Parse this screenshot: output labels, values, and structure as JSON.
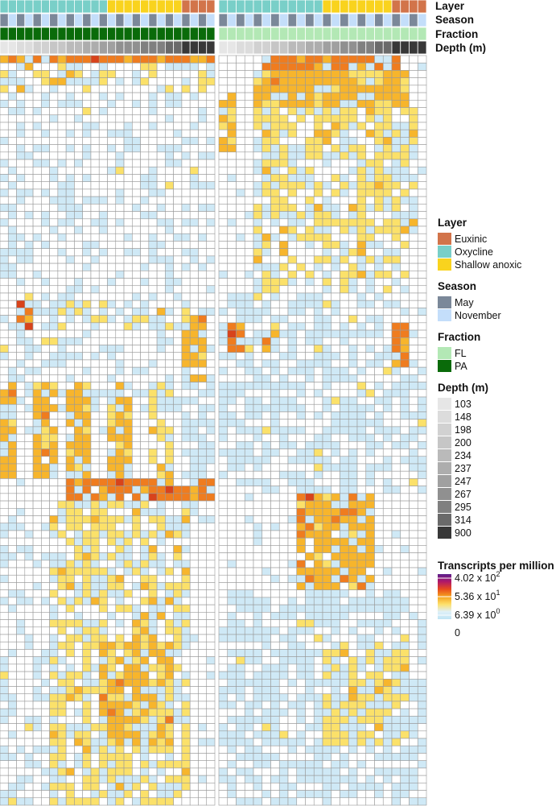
{
  "chart_data": {
    "type": "heatmap",
    "n_rows": 101,
    "panels": [
      {
        "name": "PA",
        "n_cols": 26
      },
      {
        "name": "FL",
        "n_cols": 24
      }
    ],
    "annotation_tracks": [
      "Layer",
      "Season",
      "Fraction",
      "Depth (m)"
    ],
    "legend": {
      "layer": {
        "title": "Layer",
        "items": [
          {
            "label": "Euxinic",
            "color": "#d2744a"
          },
          {
            "label": "Oxycline",
            "color": "#79cfc8"
          },
          {
            "label": "Shallow anoxic",
            "color": "#f9d31e"
          }
        ]
      },
      "season": {
        "title": "Season",
        "items": [
          {
            "label": "May",
            "color": "#7b8899"
          },
          {
            "label": "November",
            "color": "#c4defa"
          }
        ]
      },
      "fraction": {
        "title": "Fraction",
        "items": [
          {
            "label": "FL",
            "color": "#b3e8b5"
          },
          {
            "label": "PA",
            "color": "#0a6b0a"
          }
        ]
      },
      "depth": {
        "title": "Depth (m)",
        "items": [
          {
            "label": "103",
            "color": "#e6e6e6"
          },
          {
            "label": "148",
            "color": "#dcdcdc"
          },
          {
            "label": "198",
            "color": "#d1d1d1"
          },
          {
            "label": "200",
            "color": "#c6c6c6"
          },
          {
            "label": "234",
            "color": "#bababa"
          },
          {
            "label": "237",
            "color": "#adadad"
          },
          {
            "label": "247",
            "color": "#a0a0a0"
          },
          {
            "label": "267",
            "color": "#909090"
          },
          {
            "label": "295",
            "color": "#808080"
          },
          {
            "label": "314",
            "color": "#6a6a6a"
          },
          {
            "label": "900",
            "color": "#383838"
          }
        ]
      },
      "tpm": {
        "title": "Transcripts per million",
        "ticks": [
          {
            "mantissa": "4.02 x 10",
            "exp": "2",
            "value": 402
          },
          {
            "mantissa": "5.36 x 10",
            "exp": "1",
            "value": 53.6
          },
          {
            "mantissa": "6.39 x 10",
            "exp": "0",
            "value": 6.39
          },
          {
            "mantissa": "0",
            "exp": "",
            "value": 0
          }
        ],
        "gradient": [
          "#5a1f8c",
          "#b0186a",
          "#e84a1d",
          "#f5a31f",
          "#fde06a",
          "#dff0f8",
          "#bfe4f4"
        ]
      }
    },
    "columns": {
      "PA": {
        "layer": [
          "Oxycline",
          "Oxycline",
          "Oxycline",
          "Oxycline",
          "Oxycline",
          "Oxycline",
          "Oxycline",
          "Oxycline",
          "Oxycline",
          "Oxycline",
          "Oxycline",
          "Oxycline",
          "Oxycline",
          "Shallow anoxic",
          "Shallow anoxic",
          "Shallow anoxic",
          "Shallow anoxic",
          "Shallow anoxic",
          "Shallow anoxic",
          "Shallow anoxic",
          "Shallow anoxic",
          "Shallow anoxic",
          "Euxinic",
          "Euxinic",
          "Euxinic",
          "Euxinic"
        ],
        "season": [
          "May",
          "November",
          "May",
          "November",
          "May",
          "November",
          "May",
          "November",
          "May",
          "November",
          "May",
          "November",
          "May",
          "November",
          "May",
          "November",
          "May",
          "November",
          "May",
          "November",
          "May",
          "November",
          "May",
          "November",
          "May",
          "November"
        ],
        "depth": [
          "103",
          "103",
          "148",
          "148",
          "198",
          "198",
          "200",
          "200",
          "234",
          "234",
          "237",
          "237",
          "247",
          "247",
          "267",
          "267",
          "267",
          "295",
          "295",
          "295",
          "314",
          "314",
          "900",
          "900",
          "900",
          "900"
        ]
      },
      "FL": {
        "layer": [
          "Oxycline",
          "Oxycline",
          "Oxycline",
          "Oxycline",
          "Oxycline",
          "Oxycline",
          "Oxycline",
          "Oxycline",
          "Oxycline",
          "Oxycline",
          "Oxycline",
          "Oxycline",
          "Shallow anoxic",
          "Shallow anoxic",
          "Shallow anoxic",
          "Shallow anoxic",
          "Shallow anoxic",
          "Shallow anoxic",
          "Shallow anoxic",
          "Shallow anoxic",
          "Euxinic",
          "Euxinic",
          "Euxinic",
          "Euxinic"
        ],
        "season": [
          "May",
          "November",
          "May",
          "November",
          "May",
          "November",
          "May",
          "November",
          "May",
          "November",
          "May",
          "November",
          "May",
          "November",
          "May",
          "November",
          "May",
          "November",
          "May",
          "November",
          "May",
          "November",
          "May",
          "November"
        ],
        "depth": [
          "103",
          "103",
          "148",
          "148",
          "198",
          "198",
          "200",
          "200",
          "234",
          "234",
          "237",
          "237",
          "247",
          "247",
          "267",
          "267",
          "295",
          "295",
          "314",
          "314",
          "900",
          "900",
          "900",
          "900"
        ]
      }
    },
    "blocks": [
      {
        "panel": "PA",
        "r0": 0,
        "r1": 0,
        "c0": 0,
        "c1": 25,
        "lvl": 4,
        "dens": 0.9
      },
      {
        "panel": "PA",
        "r0": 1,
        "r1": 4,
        "c0": 0,
        "c1": 25,
        "lvl": 2,
        "dens": 0.3
      },
      {
        "panel": "PA",
        "r0": 5,
        "r1": 31,
        "c0": 0,
        "c1": 25,
        "lvl": 1,
        "dens": 0.12
      },
      {
        "panel": "PA",
        "r0": 32,
        "r1": 47,
        "c0": 0,
        "c1": 25,
        "lvl": 1,
        "dens": 0.18
      },
      {
        "panel": "PA",
        "r0": 33,
        "r1": 36,
        "c0": 2,
        "c1": 3,
        "lvl": 4,
        "dens": 0.9
      },
      {
        "panel": "PA",
        "r0": 33,
        "r1": 36,
        "c0": 6,
        "c1": 19,
        "lvl": 2,
        "dens": 0.35
      },
      {
        "panel": "PA",
        "r0": 35,
        "r1": 43,
        "c0": 22,
        "c1": 24,
        "lvl": 3,
        "dens": 0.55
      },
      {
        "panel": "PA",
        "r0": 44,
        "r1": 56,
        "c0": 0,
        "c1": 1,
        "lvl": 3,
        "dens": 0.7
      },
      {
        "panel": "PA",
        "r0": 44,
        "r1": 56,
        "c0": 4,
        "c1": 6,
        "lvl": 3,
        "dens": 0.8
      },
      {
        "panel": "PA",
        "r0": 44,
        "r1": 56,
        "c0": 8,
        "c1": 10,
        "lvl": 3,
        "dens": 0.75
      },
      {
        "panel": "PA",
        "r0": 44,
        "r1": 56,
        "c0": 13,
        "c1": 15,
        "lvl": 3,
        "dens": 0.75
      },
      {
        "panel": "PA",
        "r0": 44,
        "r1": 56,
        "c0": 18,
        "c1": 20,
        "lvl": 2,
        "dens": 0.5
      },
      {
        "panel": "PA",
        "r0": 44,
        "r1": 60,
        "c0": 22,
        "c1": 25,
        "lvl": 1,
        "dens": 0.3
      },
      {
        "panel": "PA",
        "r0": 57,
        "r1": 59,
        "c0": 8,
        "c1": 25,
        "lvl": 4,
        "dens": 0.8
      },
      {
        "panel": "PA",
        "r0": 60,
        "r1": 100,
        "c0": 6,
        "c1": 22,
        "lvl": 2,
        "dens": 0.55
      },
      {
        "panel": "PA",
        "r0": 60,
        "r1": 100,
        "c0": 0,
        "c1": 5,
        "lvl": 1,
        "dens": 0.12
      },
      {
        "panel": "PA",
        "r0": 79,
        "r1": 92,
        "c0": 12,
        "c1": 20,
        "lvl": 3,
        "dens": 0.6
      },
      {
        "panel": "FL",
        "r0": 0,
        "r1": 1,
        "c0": 5,
        "c1": 20,
        "lvl": 4,
        "dens": 0.8
      },
      {
        "panel": "FL",
        "r0": 2,
        "r1": 6,
        "c0": 4,
        "c1": 21,
        "lvl": 3,
        "dens": 0.85
      },
      {
        "panel": "FL",
        "r0": 7,
        "r1": 23,
        "c0": 4,
        "c1": 22,
        "lvl": 2,
        "dens": 0.6
      },
      {
        "panel": "FL",
        "r0": 5,
        "r1": 12,
        "c0": 0,
        "c1": 1,
        "lvl": 3,
        "dens": 0.8
      },
      {
        "panel": "FL",
        "r0": 24,
        "r1": 31,
        "c0": 4,
        "c1": 21,
        "lvl": 2,
        "dens": 0.45
      },
      {
        "panel": "FL",
        "r0": 32,
        "r1": 40,
        "c0": 0,
        "c1": 21,
        "lvl": 1,
        "dens": 0.35
      },
      {
        "panel": "FL",
        "r0": 36,
        "r1": 39,
        "c0": 1,
        "c1": 2,
        "lvl": 4,
        "dens": 0.9
      },
      {
        "panel": "FL",
        "r0": 36,
        "r1": 39,
        "c0": 5,
        "c1": 6,
        "lvl": 3,
        "dens": 0.7
      },
      {
        "panel": "FL",
        "r0": 36,
        "r1": 41,
        "c0": 20,
        "c1": 21,
        "lvl": 4,
        "dens": 0.9
      },
      {
        "panel": "FL",
        "r0": 41,
        "r1": 58,
        "c0": 0,
        "c1": 23,
        "lvl": 1,
        "dens": 0.4
      },
      {
        "panel": "FL",
        "r0": 59,
        "r1": 71,
        "c0": 9,
        "c1": 17,
        "lvl": 3,
        "dens": 0.75
      },
      {
        "panel": "FL",
        "r0": 59,
        "r1": 64,
        "c0": 9,
        "c1": 10,
        "lvl": 4,
        "dens": 0.8
      },
      {
        "panel": "FL",
        "r0": 72,
        "r1": 92,
        "c0": 0,
        "c1": 23,
        "lvl": 1,
        "dens": 0.45
      },
      {
        "panel": "FL",
        "r0": 80,
        "r1": 92,
        "c0": 12,
        "c1": 21,
        "lvl": 2,
        "dens": 0.55
      },
      {
        "panel": "FL",
        "r0": 93,
        "r1": 100,
        "c0": 0,
        "c1": 23,
        "lvl": 1,
        "dens": 0.35
      }
    ]
  }
}
